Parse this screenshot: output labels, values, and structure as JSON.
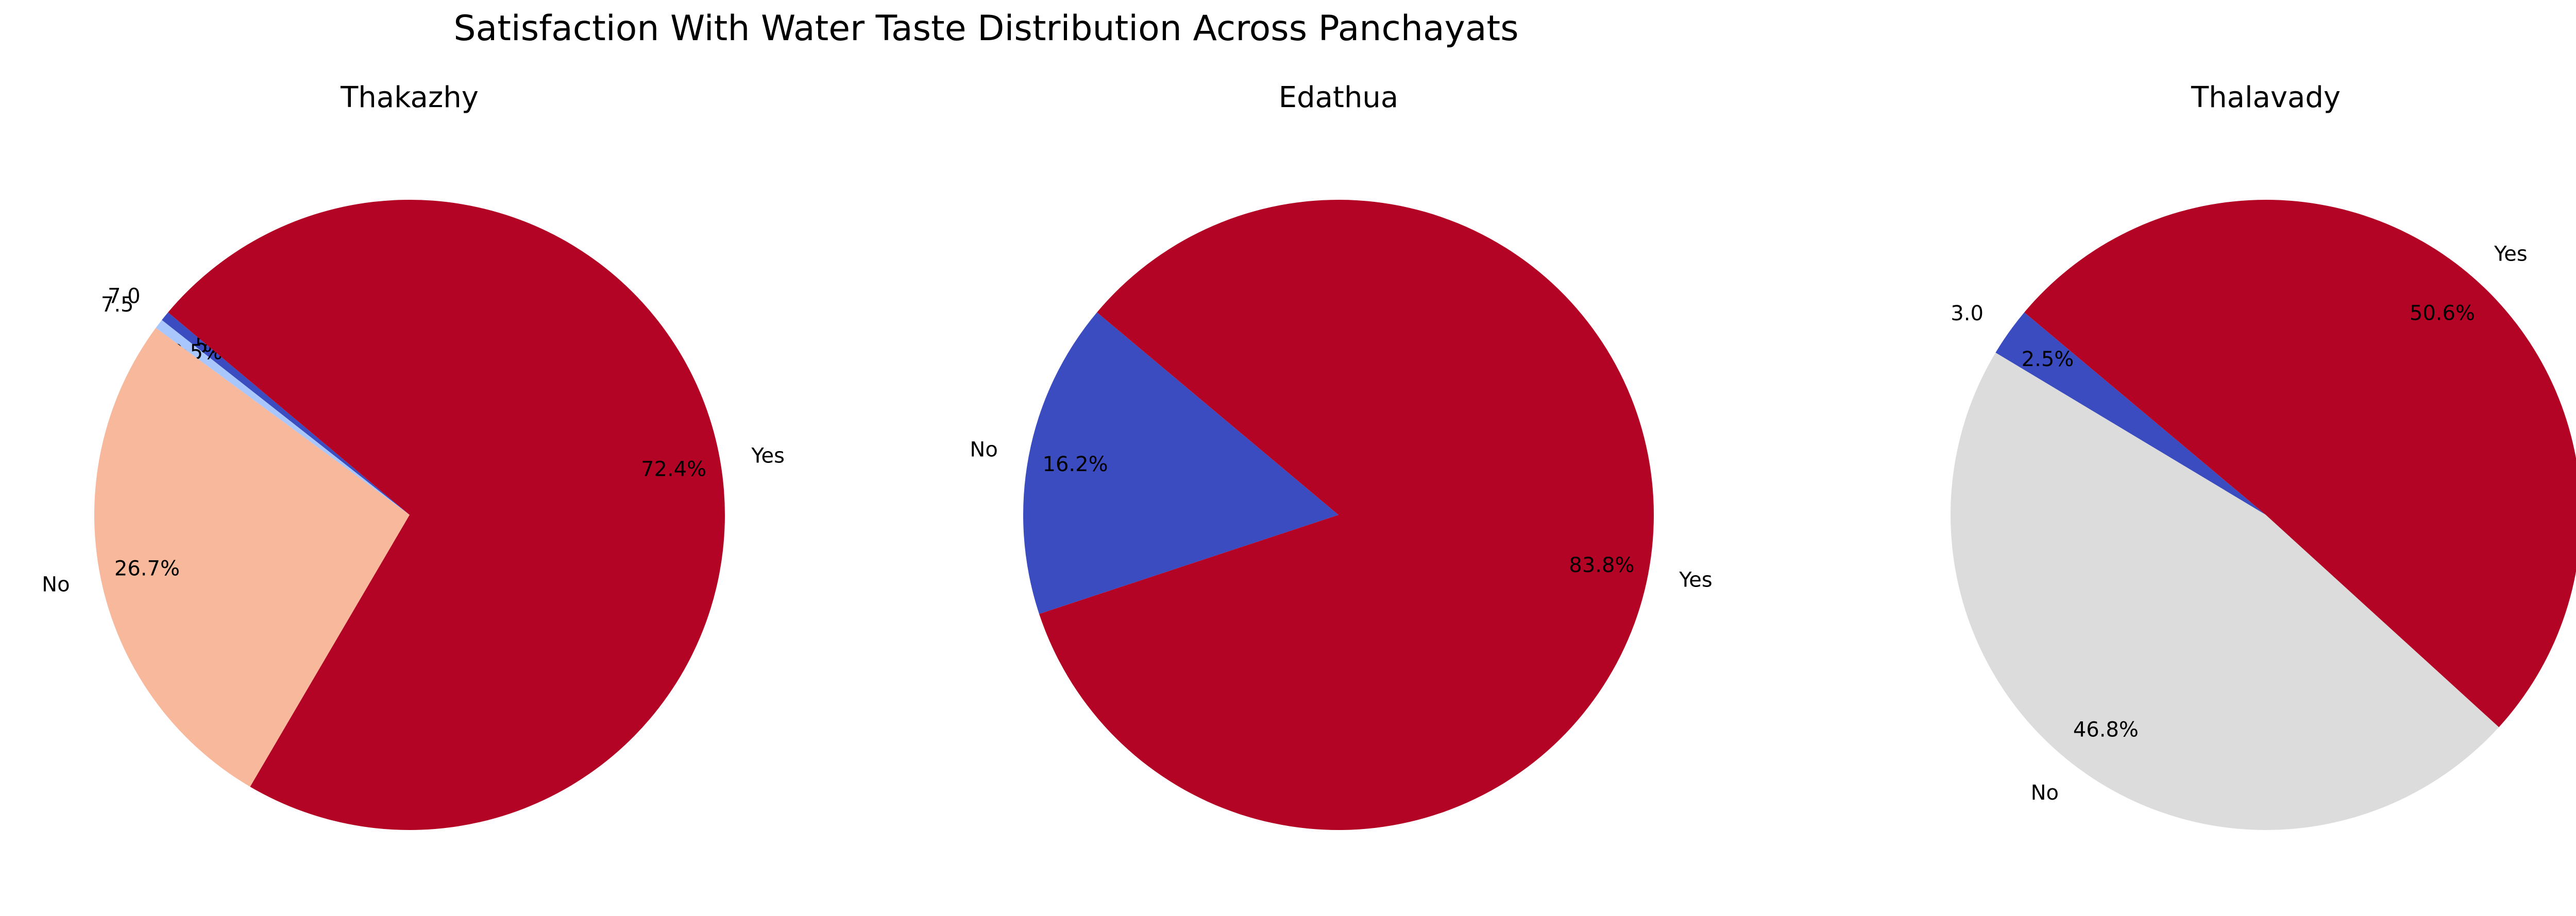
{
  "chart_data": {
    "title": "Satisfaction With Water Taste Distribution Across Panchayats",
    "type": "pie",
    "charts": [
      {
        "title": "Thakazhy",
        "slices": [
          {
            "label": "7.0",
            "pct_label": "0.5%",
            "value": 0.5,
            "color": "#3b4cc0"
          },
          {
            "label": "7.5",
            "pct_label": "0.5%",
            "value": 0.5,
            "color": "#aac7fd"
          },
          {
            "label": "No",
            "pct_label": "26.7%",
            "value": 26.7,
            "color": "#f7b89c"
          },
          {
            "label": "Yes",
            "pct_label": "72.4%",
            "value": 72.4,
            "color": "#b40426"
          }
        ]
      },
      {
        "title": "Edathua",
        "slices": [
          {
            "label": "No",
            "pct_label": "16.2%",
            "value": 16.2,
            "color": "#3b4cc0"
          },
          {
            "label": "Yes",
            "pct_label": "83.8%",
            "value": 83.8,
            "color": "#b40426"
          }
        ]
      },
      {
        "title": "Thalavady",
        "slices": [
          {
            "label": "3.0",
            "pct_label": "2.5%",
            "value": 2.5,
            "color": "#3b4cc0"
          },
          {
            "label": "No",
            "pct_label": "46.8%",
            "value": 46.8,
            "color": "#dddcdc"
          },
          {
            "label": "Yes",
            "pct_label": "50.6%",
            "value": 50.6,
            "color": "#b40426"
          }
        ]
      }
    ]
  }
}
